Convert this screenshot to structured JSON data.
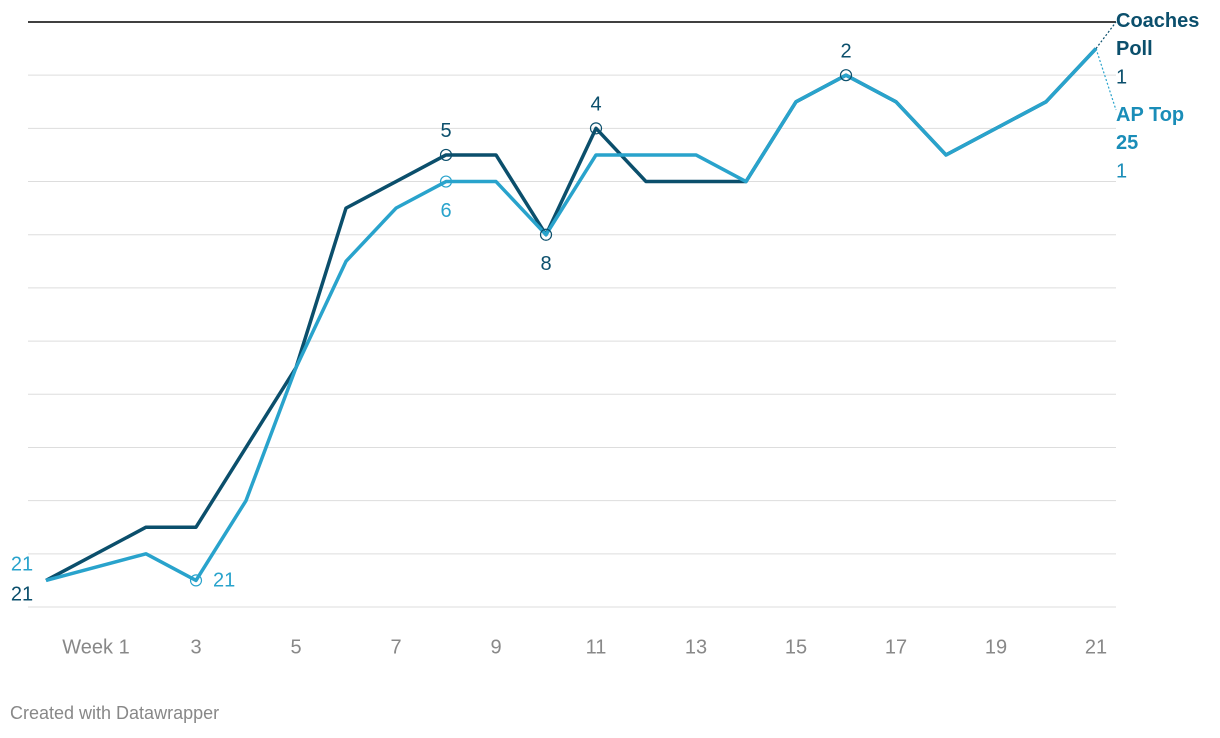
{
  "chart_data": {
    "type": "line",
    "x": [
      0,
      2,
      3,
      4,
      5,
      6,
      7,
      8,
      9,
      10,
      11,
      12,
      13,
      14,
      15,
      16,
      17,
      18,
      19,
      20,
      21
    ],
    "series": [
      {
        "name": "Coaches Poll",
        "color": "#0b4f6c",
        "values": [
          21,
          19,
          19,
          16,
          13,
          7,
          6,
          5,
          5,
          8,
          4,
          6,
          6,
          6,
          3,
          2,
          3,
          5,
          4,
          3,
          1
        ]
      },
      {
        "name": "AP Top 25",
        "color": "#29a3cc",
        "values": [
          21,
          20,
          21,
          18,
          13,
          9,
          7,
          6,
          6,
          8,
          5,
          5,
          5,
          6,
          3,
          2,
          3,
          5,
          4,
          3,
          1
        ]
      }
    ],
    "xlim": [
      0,
      21
    ],
    "xticks": [
      {
        "value": 1,
        "label": "Week 1"
      },
      3,
      5,
      7,
      9,
      11,
      13,
      15,
      17,
      19,
      21
    ],
    "ylim": [
      22,
      0
    ],
    "yticks": [
      0,
      2,
      4,
      6,
      8,
      10,
      12,
      14,
      16,
      18,
      20,
      22
    ],
    "grid": true,
    "footer": "Created with Datawrapper"
  }
}
